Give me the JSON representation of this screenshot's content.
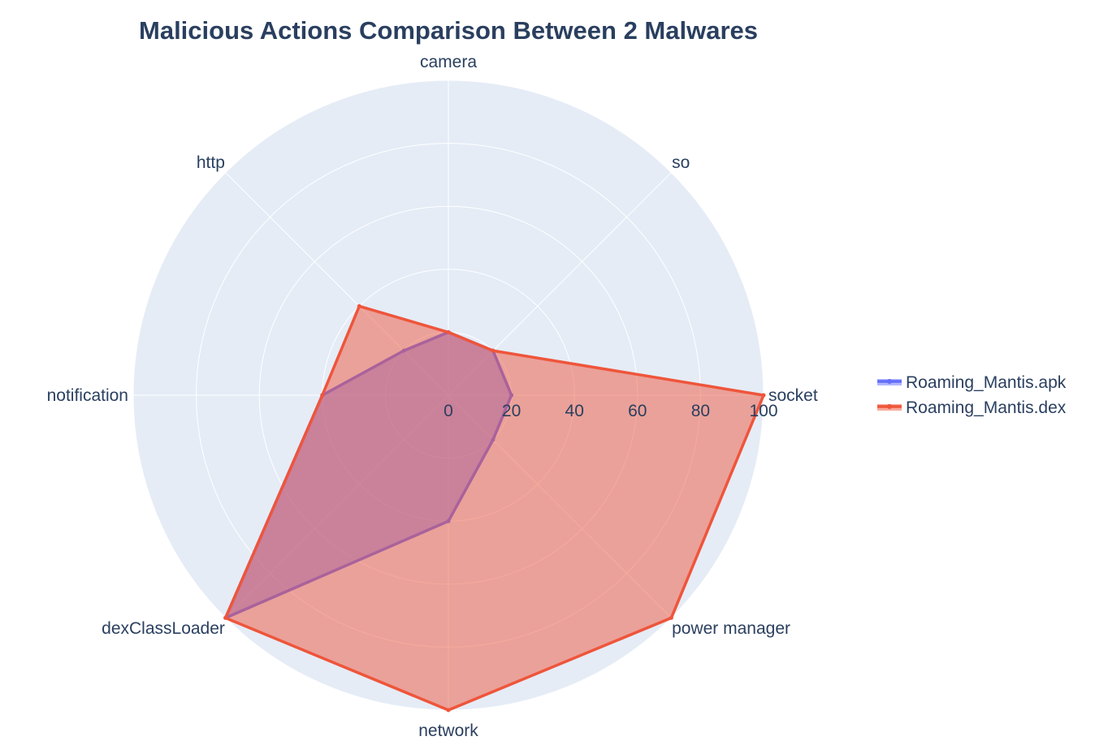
{
  "chart_data": {
    "type": "radar",
    "title": "Malicious Actions Comparison Between 2 Malwares",
    "categories": [
      "socket",
      "so",
      "camera",
      "http",
      "notification",
      "dexClassLoader",
      "network",
      "power manager"
    ],
    "radial_ticks": [
      "0",
      "20",
      "40",
      "60",
      "80",
      "100"
    ],
    "range": [
      0,
      100
    ],
    "legend_position": "right",
    "series": [
      {
        "name": "Roaming_Mantis.apk",
        "color": "#636efa",
        "fill": "rgba(99,110,250,0.5)",
        "values": [
          20,
          20,
          20,
          20,
          40,
          100,
          40,
          20
        ]
      },
      {
        "name": "Roaming_Mantis.dex",
        "color": "#ef553b",
        "fill": "rgba(239,85,59,0.5)",
        "values": [
          100,
          20,
          20,
          40,
          40,
          100,
          100,
          100
        ]
      }
    ]
  },
  "colors": {
    "polar_bg": "#e5ecf6",
    "grid": "#ffffff",
    "text": "#2a3f5f"
  }
}
